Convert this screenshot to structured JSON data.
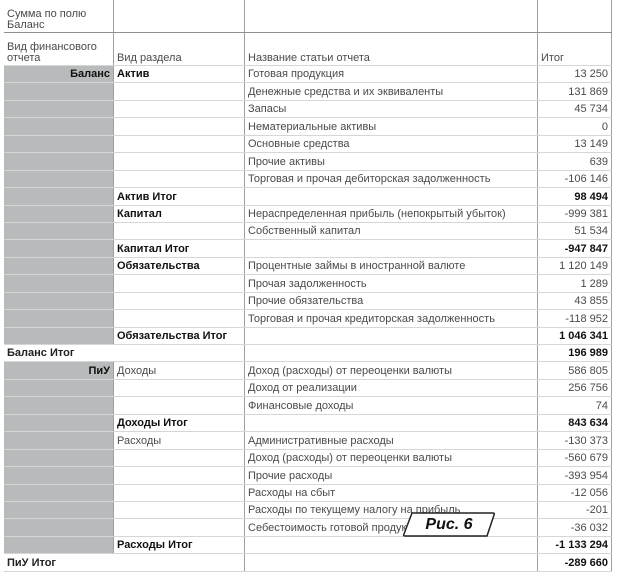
{
  "header": {
    "field_label": "Сумма по полю Баланс",
    "col1": "Вид финансового отчета",
    "col2": "Вид раздела",
    "col3": "Название статьи отчета",
    "col4": "Итог"
  },
  "rows": [
    {
      "c1": "Баланс",
      "c2": "Актив",
      "c3": "Готовая продукция",
      "v": "13 250",
      "c2bold": true
    },
    {
      "c3": "Денежные средства и их эквиваленты",
      "v": "131 869"
    },
    {
      "c3": "Запасы",
      "v": "45 734"
    },
    {
      "c3": "Нематериальные активы",
      "v": "0"
    },
    {
      "c3": "Основные средства",
      "v": "13 149"
    },
    {
      "c3": "Прочие активы",
      "v": "639"
    },
    {
      "c3": "Торговая и прочая дебиторская задолженность",
      "v": "-106 146"
    },
    {
      "c2": "Актив Итог",
      "v": "98 494",
      "type": "total"
    },
    {
      "c2": "Капитал",
      "c3": "Нераспределенная прибыль (непокрытый убыток)",
      "v": "-999 381",
      "c2bold": true
    },
    {
      "c3": "Собственный капитал",
      "v": "51 534"
    },
    {
      "c2": "Капитал Итог",
      "v": "-947 847",
      "type": "total"
    },
    {
      "c2": "Обязательства",
      "c3": "Процентные займы в иностранной валюте",
      "v": "1 120 149",
      "c2bold": true
    },
    {
      "c3": "Прочая задолженность",
      "v": "1 289"
    },
    {
      "c3": "Прочие обязательства",
      "v": "43 855"
    },
    {
      "c3": "Торговая и прочая кредиторская задолженность",
      "v": "-118 952"
    },
    {
      "c2": "Обязательства Итог",
      "v": "1 046 341",
      "type": "total"
    },
    {
      "c1": "Баланс Итог",
      "v": "196 989",
      "type": "grand"
    },
    {
      "c1": "ПиУ",
      "c2": "Доходы",
      "c3": "Доход (расходы) от переоценки валюты",
      "v": "586 805"
    },
    {
      "c3": "Доход от реализации",
      "v": "256 756"
    },
    {
      "c3": "Финансовые доходы",
      "v": "74"
    },
    {
      "c2": "Доходы Итог",
      "v": "843 634",
      "type": "total"
    },
    {
      "c2": "Расходы",
      "c3": "Административные расходы",
      "v": "-130 373"
    },
    {
      "c3": "Доход (расходы) от переоценки валюты",
      "v": "-560 679"
    },
    {
      "c3": "Прочие расходы",
      "v": "-393 954"
    },
    {
      "c3": "Расходы на сбыт",
      "v": "-12 056"
    },
    {
      "c3": "Расходы по текущему налогу на прибыль",
      "v": "-201"
    },
    {
      "c3": "Себестоимость готовой продукции",
      "v": "-36 032"
    },
    {
      "c2": "Расходы Итог",
      "v": "-1 133 294",
      "type": "total"
    },
    {
      "c1": "ПиУ Итог",
      "v": "-289 660",
      "type": "grand"
    }
  ],
  "figure_label": "Рис. 6",
  "colors": {
    "row_header_fill": "#b7bbbb",
    "grid": "#d6d6d6",
    "border": "#a0a0a0"
  }
}
